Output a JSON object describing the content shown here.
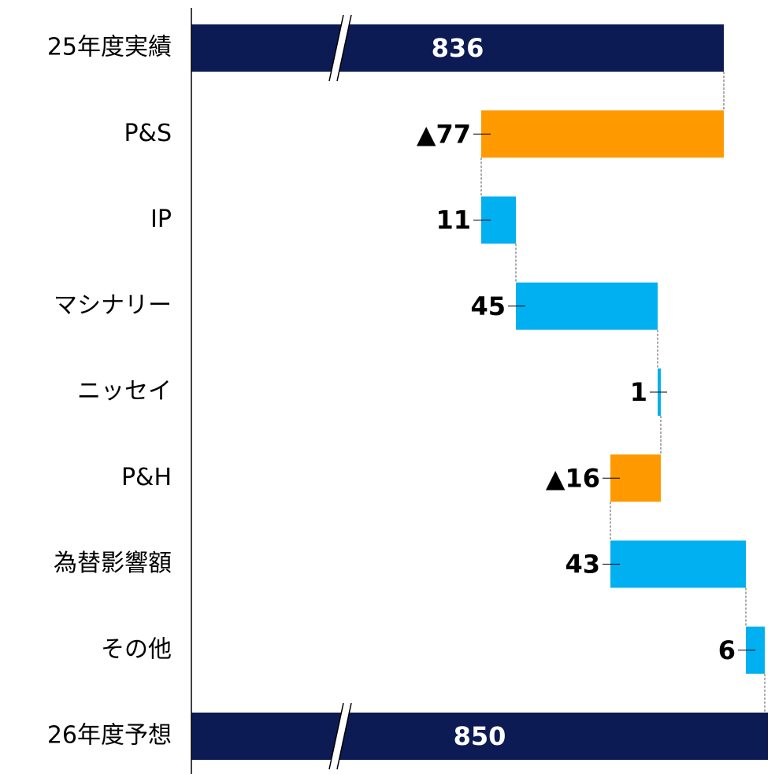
{
  "chart_data": {
    "type": "waterfall",
    "categories": [
      "25年度実績",
      "P&S",
      "IP",
      "マシナリー",
      "ニッセイ",
      "P&H",
      "為替影響額",
      "その他",
      "26年度予想"
    ],
    "values": [
      836,
      -77,
      11,
      45,
      1,
      -16,
      43,
      6,
      850
    ],
    "value_labels": [
      "836",
      "▲77",
      "11",
      "45",
      "1",
      "▲16",
      "43",
      "6",
      "850"
    ],
    "measures": [
      "total",
      "relative",
      "relative",
      "relative",
      "relative",
      "relative",
      "relative",
      "relative",
      "total"
    ],
    "colors": {
      "total": "#0c1b53",
      "increase": "#00b0f0",
      "decrease": "#ff9900"
    },
    "xlim": [
      667,
      852
    ],
    "axis_break": true
  }
}
